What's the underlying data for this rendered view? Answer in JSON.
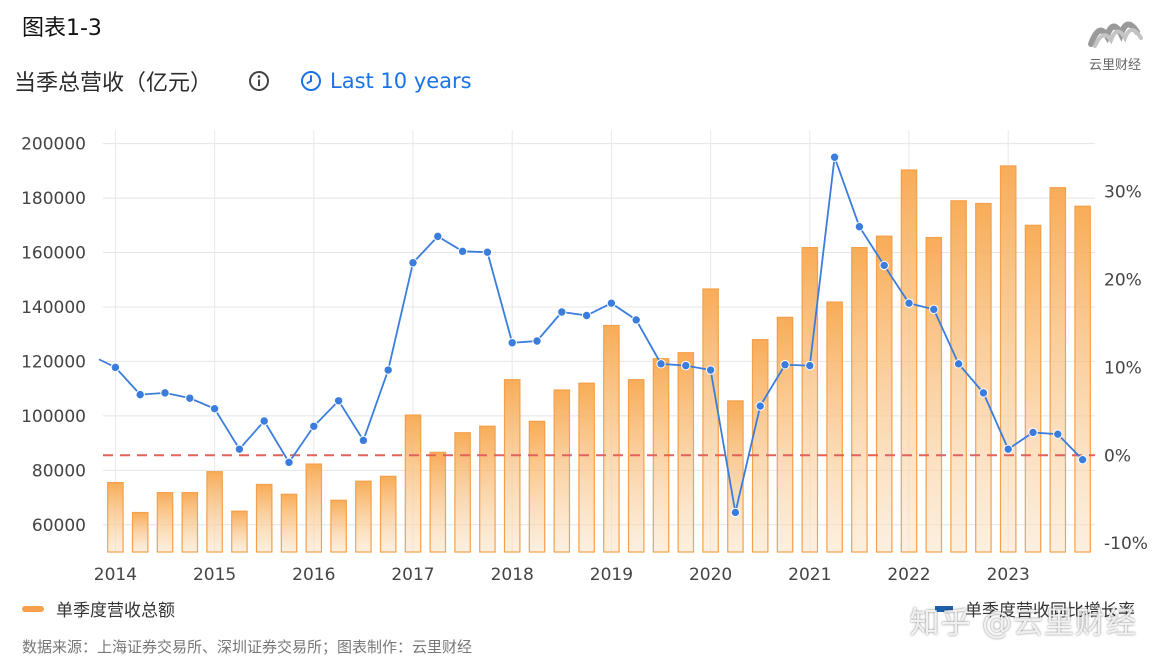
{
  "figure_label": "图表1-3",
  "brand": {
    "name": "云里财经",
    "icon": "brand-logo-icon"
  },
  "header": {
    "title": "当季总营收（亿元）",
    "info_icon": "info-icon",
    "period_icon": "clock-icon",
    "period_label": "Last 10 years"
  },
  "chart_data": {
    "type": "bar",
    "categories": [
      "2014Q1",
      "2014Q2",
      "2014Q3",
      "2014Q4",
      "2015Q1",
      "2015Q2",
      "2015Q3",
      "2015Q4",
      "2016Q1",
      "2016Q2",
      "2016Q3",
      "2016Q4",
      "2017Q1",
      "2017Q2",
      "2017Q3",
      "2017Q4",
      "2018Q1",
      "2018Q2",
      "2018Q3",
      "2018Q4",
      "2019Q1",
      "2019Q2",
      "2019Q3",
      "2019Q4",
      "2020Q1",
      "2020Q2",
      "2020Q3",
      "2020Q4",
      "2021Q1",
      "2021Q2",
      "2021Q3",
      "2021Q4",
      "2022Q1",
      "2022Q2",
      "2022Q3",
      "2022Q4",
      "2023Q1",
      "2023Q2",
      "2023Q3",
      "2023Q4"
    ],
    "x_tick_labels": [
      "2014",
      "2015",
      "2016",
      "2017",
      "2018",
      "2019",
      "2020",
      "2021",
      "2022",
      "2023"
    ],
    "series": [
      {
        "name": "单季度营收总额",
        "axis": "left",
        "type": "bar",
        "color": "#f5a04a",
        "values": [
          75500,
          64500,
          71800,
          71800,
          79500,
          65000,
          74800,
          71200,
          82300,
          69000,
          76000,
          77800,
          100300,
          86600,
          93800,
          96200,
          113300,
          98000,
          109500,
          112000,
          133200,
          113300,
          121000,
          123200,
          146600,
          105500,
          128000,
          136200,
          161800,
          141800,
          161800,
          166000,
          190300,
          165500,
          179000,
          178000,
          191800,
          170000,
          183800,
          177000
        ]
      },
      {
        "name": "单季度营收同比增长率",
        "axis": "right",
        "type": "line",
        "color": "#3b7ddd",
        "values": [
          10.0,
          6.9,
          7.1,
          6.5,
          5.3,
          0.7,
          3.9,
          -0.8,
          3.3,
          6.2,
          1.7,
          9.7,
          21.9,
          24.9,
          23.2,
          23.1,
          12.8,
          13.0,
          16.3,
          15.9,
          17.3,
          15.4,
          10.4,
          10.2,
          9.7,
          -6.5,
          5.6,
          10.3,
          10.2,
          33.9,
          26.0,
          21.6,
          17.3,
          16.6,
          10.4,
          7.1,
          0.7,
          2.6,
          2.4,
          -0.5
        ]
      }
    ],
    "left_axis": {
      "ticks": [
        "200000",
        "180000",
        "160000",
        "140000",
        "120000",
        "100000",
        "80000",
        "60000"
      ],
      "ylim": [
        50000,
        205000
      ]
    },
    "right_axis": {
      "ticks": [
        "30%",
        "20%",
        "10%",
        "0%",
        "-10%"
      ],
      "ylim": [
        -11,
        37
      ]
    },
    "reference_line": {
      "value": 0,
      "axis": "right",
      "color": "#e0625a",
      "style": "dashed"
    },
    "grid": true,
    "legend_position": "bottom"
  },
  "watermark": "知乎 @云里财经",
  "source": "数据来源：上海证券交易所、深圳证券交易所；图表制作：云里财经"
}
